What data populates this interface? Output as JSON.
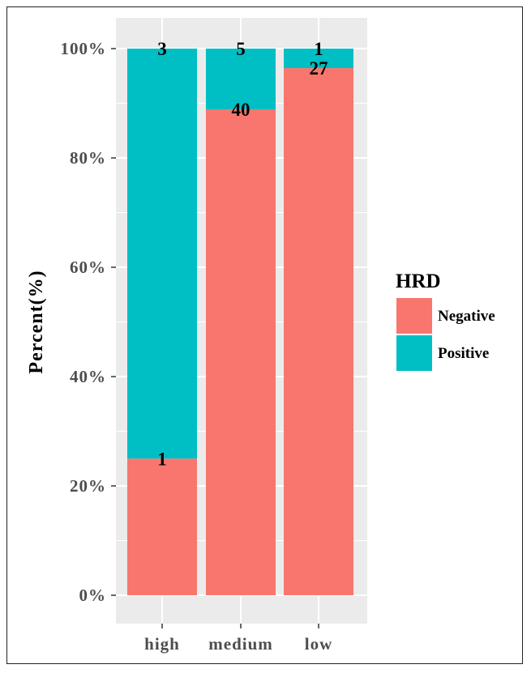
{
  "chart_data": {
    "type": "bar",
    "stacked": true,
    "percent": true,
    "categories": [
      "high",
      "medium",
      "low"
    ],
    "series": [
      {
        "name": "Negative",
        "color": "#F8766D",
        "counts": [
          1,
          40,
          27
        ],
        "percent": [
          25.0,
          88.89,
          96.43
        ]
      },
      {
        "name": "Positive",
        "color": "#00BFC4",
        "counts": [
          3,
          5,
          1
        ],
        "percent": [
          75.0,
          11.11,
          3.57
        ]
      }
    ],
    "title": "",
    "xlabel": "",
    "ylabel": "Percent(%)",
    "ylim": [
      0,
      100
    ],
    "yticks": [
      "0%",
      "20%",
      "40%",
      "60%",
      "80%",
      "100%"
    ],
    "ytick_values": [
      0,
      20,
      40,
      60,
      80,
      100
    ],
    "grid": true,
    "panel_background": "#EBEBEB",
    "legend": {
      "title": "HRD",
      "placement": "right",
      "entries": [
        "Negative",
        "Positive"
      ]
    }
  }
}
